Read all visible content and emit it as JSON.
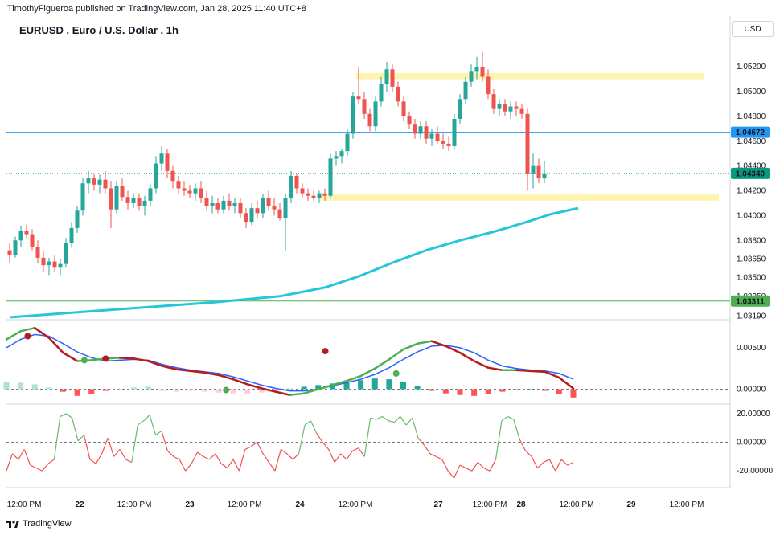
{
  "header": {
    "publisher": "TimothyFigueroa published on TradingView.com, Jan 28, 2025 11:40 UTC+8",
    "title": "EURUSD . Euro / U.S. Dollar . 1h",
    "currency": "USD"
  },
  "footer": {
    "brand": "TradingView"
  },
  "colors": {
    "up": "#26a69a",
    "down": "#ef5350",
    "ma": "#26c6da",
    "zone": "#fff3b0",
    "hline_blue": "#2196f3",
    "hline_green": "#4caf50",
    "macd": "#2962ff",
    "signal_up": "#4caf50",
    "signal_down": "#b71c1c"
  },
  "chart_data": [
    {
      "type": "candlestick",
      "title": "EURUSD . Euro / U.S. Dollar . 1h",
      "x_ticks": [
        "12:00 PM",
        "22",
        "12:00 PM",
        "23",
        "12:00 PM",
        "24",
        "12:00 PM",
        "27",
        "12:00 PM",
        "28",
        "12:00 PM",
        "29",
        "12:00 PM"
      ],
      "y_ticks": [
        "1.05200",
        "1.05000",
        "1.04800",
        "1.04600",
        "1.04400",
        "1.04200",
        "1.04000",
        "1.03800",
        "1.03650",
        "1.03500",
        "1.03350",
        "1.03190"
      ],
      "ylim": [
        1.0318,
        1.0535
      ],
      "price_labels": [
        {
          "value": 1.04672,
          "text": "1.04672",
          "color": "#2196f3"
        },
        {
          "value": 1.0434,
          "text": "1.04340",
          "color": "#089981"
        },
        {
          "value": 1.03311,
          "text": "1.03311",
          "color": "#4caf50"
        }
      ],
      "zones": [
        {
          "from": 1.051,
          "to": 1.0515
        },
        {
          "from": 1.0412,
          "to": 1.0417
        }
      ],
      "ohlc": [
        [
          1.0372,
          1.0378,
          1.0362,
          1.0368
        ],
        [
          1.0368,
          1.0383,
          1.0366,
          1.038
        ],
        [
          1.038,
          1.0392,
          1.0375,
          1.0388
        ],
        [
          1.0388,
          1.0393,
          1.0382,
          1.0385
        ],
        [
          1.0385,
          1.0389,
          1.0372,
          1.0375
        ],
        [
          1.0375,
          1.038,
          1.0362,
          1.0366
        ],
        [
          1.0366,
          1.0372,
          1.0355,
          1.036
        ],
        [
          1.036,
          1.0366,
          1.0352,
          1.0363
        ],
        [
          1.0363,
          1.0368,
          1.0355,
          1.0358
        ],
        [
          1.0358,
          1.0365,
          1.0352,
          1.0361
        ],
        [
          1.0361,
          1.0382,
          1.0358,
          1.0378
        ],
        [
          1.0378,
          1.0395,
          1.0374,
          1.039
        ],
        [
          1.039,
          1.0408,
          1.0386,
          1.0404
        ],
        [
          1.0404,
          1.043,
          1.04,
          1.0426
        ],
        [
          1.0426,
          1.0436,
          1.0418,
          1.043
        ],
        [
          1.043,
          1.0434,
          1.042,
          1.0425
        ],
        [
          1.0425,
          1.0433,
          1.0418,
          1.0429
        ],
        [
          1.0429,
          1.0436,
          1.0418,
          1.0422
        ],
        [
          1.0422,
          1.0428,
          1.039,
          1.0405
        ],
        [
          1.0405,
          1.0428,
          1.0402,
          1.0424
        ],
        [
          1.0424,
          1.043,
          1.0412,
          1.0415
        ],
        [
          1.0415,
          1.042,
          1.0405,
          1.041
        ],
        [
          1.041,
          1.0418,
          1.0406,
          1.0414
        ],
        [
          1.0414,
          1.0418,
          1.0404,
          1.0408
        ],
        [
          1.0408,
          1.0416,
          1.04,
          1.0412
        ],
        [
          1.0412,
          1.0425,
          1.0408,
          1.0422
        ],
        [
          1.0422,
          1.0448,
          1.0418,
          1.0442
        ],
        [
          1.0442,
          1.0456,
          1.0436,
          1.045
        ],
        [
          1.045,
          1.0454,
          1.043,
          1.0436
        ],
        [
          1.0436,
          1.044,
          1.0422,
          1.0428
        ],
        [
          1.0428,
          1.0432,
          1.0418,
          1.0422
        ],
        [
          1.0422,
          1.0428,
          1.0416,
          1.042
        ],
        [
          1.042,
          1.0425,
          1.0414,
          1.0418
        ],
        [
          1.0418,
          1.0426,
          1.0412,
          1.0422
        ],
        [
          1.0422,
          1.0428,
          1.041,
          1.0414
        ],
        [
          1.0414,
          1.042,
          1.0404,
          1.0408
        ],
        [
          1.0408,
          1.0416,
          1.0402,
          1.041
        ],
        [
          1.041,
          1.0414,
          1.0402,
          1.0405
        ],
        [
          1.0405,
          1.0416,
          1.0402,
          1.0412
        ],
        [
          1.0412,
          1.0418,
          1.0404,
          1.0408
        ],
        [
          1.0408,
          1.0414,
          1.0402,
          1.041
        ],
        [
          1.041,
          1.0414,
          1.0398,
          1.0402
        ],
        [
          1.0402,
          1.0406,
          1.039,
          1.0395
        ],
        [
          1.0395,
          1.041,
          1.0392,
          1.0406
        ],
        [
          1.0406,
          1.0412,
          1.0398,
          1.0402
        ],
        [
          1.0402,
          1.0418,
          1.0398,
          1.0414
        ],
        [
          1.0414,
          1.042,
          1.0404,
          1.0408
        ],
        [
          1.0408,
          1.0414,
          1.04,
          1.0405
        ],
        [
          1.0405,
          1.041,
          1.0396,
          1.0398
        ],
        [
          1.0398,
          1.0418,
          1.0372,
          1.0414
        ],
        [
          1.0414,
          1.0436,
          1.041,
          1.0432
        ],
        [
          1.0432,
          1.0434,
          1.0418,
          1.0422
        ],
        [
          1.0422,
          1.0426,
          1.0414,
          1.0418
        ],
        [
          1.0418,
          1.0422,
          1.0412,
          1.0416
        ],
        [
          1.0416,
          1.042,
          1.0412,
          1.0414
        ],
        [
          1.0414,
          1.042,
          1.041,
          1.0418
        ],
        [
          1.0418,
          1.0422,
          1.0412,
          1.0416
        ],
        [
          1.0416,
          1.045,
          1.0414,
          1.0446
        ],
        [
          1.0446,
          1.0452,
          1.044,
          1.0448
        ],
        [
          1.0448,
          1.0454,
          1.0442,
          1.0452
        ],
        [
          1.0452,
          1.047,
          1.0448,
          1.0466
        ],
        [
          1.0466,
          1.05,
          1.0462,
          1.0496
        ],
        [
          1.0496,
          1.052,
          1.049,
          1.0494
        ],
        [
          1.0494,
          1.05,
          1.0478,
          1.0482
        ],
        [
          1.0482,
          1.0486,
          1.0468,
          1.0472
        ],
        [
          1.0472,
          1.0496,
          1.0468,
          1.0492
        ],
        [
          1.0492,
          1.0512,
          1.0488,
          1.0506
        ],
        [
          1.0506,
          1.0524,
          1.05,
          1.0518
        ],
        [
          1.0518,
          1.0522,
          1.05,
          1.0504
        ],
        [
          1.0504,
          1.0508,
          1.0488,
          1.0492
        ],
        [
          1.0492,
          1.0496,
          1.0476,
          1.048
        ],
        [
          1.048,
          1.0484,
          1.047,
          1.0474
        ],
        [
          1.0474,
          1.0478,
          1.0462,
          1.0466
        ],
        [
          1.0466,
          1.0476,
          1.0462,
          1.0472
        ],
        [
          1.0472,
          1.0476,
          1.0458,
          1.0462
        ],
        [
          1.0462,
          1.047,
          1.0456,
          1.0466
        ],
        [
          1.0466,
          1.0472,
          1.0458,
          1.046
        ],
        [
          1.046,
          1.0466,
          1.0454,
          1.0458
        ],
        [
          1.0458,
          1.0464,
          1.0452,
          1.0456
        ],
        [
          1.0456,
          1.0482,
          1.0454,
          1.0478
        ],
        [
          1.0478,
          1.0498,
          1.0474,
          1.0494
        ],
        [
          1.0494,
          1.0512,
          1.049,
          1.0508
        ],
        [
          1.0508,
          1.0522,
          1.0504,
          1.0516
        ],
        [
          1.0516,
          1.0528,
          1.051,
          1.052
        ],
        [
          1.052,
          1.0532,
          1.0508,
          1.0512
        ],
        [
          1.0512,
          1.0518,
          1.0494,
          1.0498
        ],
        [
          1.0498,
          1.0502,
          1.0482,
          1.0486
        ],
        [
          1.0486,
          1.0494,
          1.048,
          1.049
        ],
        [
          1.049,
          1.0494,
          1.048,
          1.0484
        ],
        [
          1.0484,
          1.0492,
          1.0478,
          1.0488
        ],
        [
          1.0488,
          1.0492,
          1.048,
          1.0486
        ],
        [
          1.0486,
          1.049,
          1.0478,
          1.0482
        ],
        [
          1.0482,
          1.0486,
          1.042,
          1.0434
        ],
        [
          1.0434,
          1.045,
          1.0422,
          1.044
        ],
        [
          1.044,
          1.0446,
          1.0426,
          1.043
        ],
        [
          1.043,
          1.0444,
          1.0426,
          1.0434
        ]
      ],
      "ma": [
        [
          0,
          1.0318
        ],
        [
          12,
          1.0322
        ],
        [
          24,
          1.0326
        ],
        [
          36,
          1.033
        ],
        [
          48,
          1.0335
        ],
        [
          56,
          1.0342
        ],
        [
          62,
          1.0351
        ],
        [
          68,
          1.0362
        ],
        [
          74,
          1.0372
        ],
        [
          80,
          1.038
        ],
        [
          86,
          1.0387
        ],
        [
          92,
          1.0395
        ],
        [
          96,
          1.0401
        ],
        [
          101,
          1.0406
        ]
      ]
    },
    {
      "type": "line",
      "title": "",
      "y_ticks": [
        "0.00500",
        "0.00000"
      ],
      "ylim": [
        -0.0015,
        0.008
      ],
      "series": [
        {
          "role": "macd",
          "values": [
            0.005,
            0.006,
            0.0066,
            0.0064,
            0.0055,
            0.0045,
            0.0038,
            0.0034,
            0.0035,
            0.0036,
            0.0035,
            0.003,
            0.0026,
            0.0023,
            0.0021,
            0.0019,
            0.0015,
            0.001,
            0.0005,
            0.0001,
            -0.0002,
            -0.0002,
            0.0,
            0.0004,
            0.0008,
            0.0012,
            0.0018,
            0.0026,
            0.0036,
            0.0045,
            0.0052,
            0.0053,
            0.005,
            0.0044,
            0.0035,
            0.0028,
            0.0025,
            0.0023,
            0.0022,
            0.0019,
            0.0012
          ]
        },
        {
          "role": "signal",
          "values": [
            0.006,
            0.007,
            0.0074,
            0.0062,
            0.0044,
            0.0034,
            0.0035,
            0.0037,
            0.0038,
            0.0037,
            0.0034,
            0.0028,
            0.0024,
            0.0022,
            0.002,
            0.0017,
            0.0012,
            0.0006,
            0.0001,
            -0.0003,
            -0.0007,
            -0.0005,
            0.0,
            0.0005,
            0.001,
            0.0016,
            0.0025,
            0.0036,
            0.0048,
            0.0055,
            0.0058,
            0.0052,
            0.0044,
            0.0034,
            0.0026,
            0.0023,
            0.0023,
            0.0022,
            0.0021,
            0.0014,
            0.0001
          ]
        },
        {
          "role": "histogram",
          "values": [
            0.0009,
            0.0008,
            0.0006,
            0.0002,
            -0.0003,
            -0.0008,
            -0.0006,
            -0.0002,
            0.0,
            0.0002,
            0.0003,
            -0.0002,
            -0.0003,
            -0.0002,
            -0.0003,
            -0.0004,
            -0.0005,
            -0.0006,
            -0.0004,
            -0.0002,
            0.0001,
            0.0003,
            0.0005,
            0.0007,
            0.0009,
            0.0011,
            0.0013,
            0.0012,
            0.0009,
            0.0004,
            -0.0002,
            -0.0005,
            -0.0007,
            -0.0008,
            -0.0006,
            -0.0003,
            -0.0001,
            0.0,
            -0.0002,
            -0.0006,
            -0.001
          ]
        }
      ],
      "cross_points": [
        [
          4,
          0.0064
        ],
        [
          10,
          0.0035
        ],
        [
          13,
          0.0037
        ],
        [
          25,
          -0.0001
        ],
        [
          35,
          0.0046
        ],
        [
          41,
          0.0019
        ]
      ]
    },
    {
      "type": "line",
      "title": "",
      "y_ticks": [
        "20.00000",
        "0.00000",
        "-20.00000"
      ],
      "ylim": [
        -30,
        25
      ],
      "series": [
        {
          "role": "oscillator",
          "values": [
            -20,
            -8,
            -12,
            -5,
            -16,
            -18,
            -20,
            -15,
            -12,
            18,
            20,
            17,
            1,
            5,
            -12,
            -15,
            -8,
            3,
            -10,
            -5,
            -12,
            -14,
            12,
            15,
            19,
            5,
            8,
            -6,
            -10,
            -12,
            -20,
            -15,
            -7,
            -10,
            -12,
            -8,
            -15,
            -18,
            -12,
            -20,
            -5,
            -3,
            0,
            -8,
            -14,
            -20,
            -5,
            -8,
            -12,
            -8,
            12,
            15,
            6,
            0,
            -5,
            -14,
            -8,
            -12,
            -6,
            -4,
            -10,
            17,
            16,
            18,
            15,
            14,
            18,
            12,
            17,
            3,
            -2,
            -8,
            -10,
            -12,
            -20,
            -25,
            -16,
            -18,
            -20,
            -14,
            -18,
            -20,
            -12,
            15,
            18,
            16,
            2,
            -6,
            -10,
            -18,
            -14,
            -12,
            -20,
            -12,
            -16,
            -14
          ]
        }
      ]
    }
  ]
}
